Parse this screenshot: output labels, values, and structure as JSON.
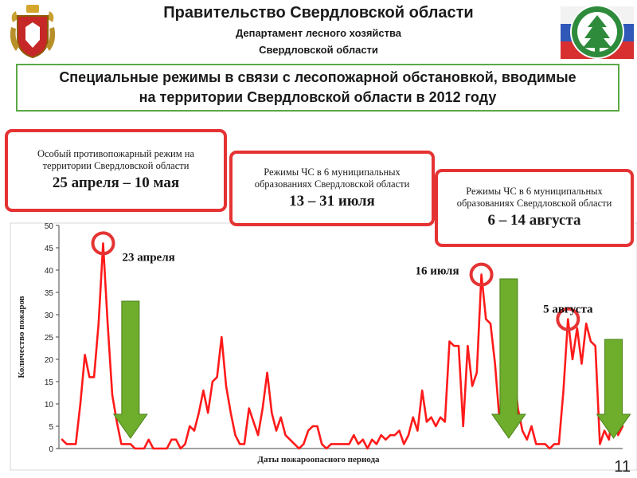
{
  "header": {
    "title": "Правительство Свердловской области",
    "subtitle_line1": "Департамент лесного хозяйства",
    "subtitle_line2": "Свердловской области"
  },
  "banner": {
    "line1": "Специальные режимы в связи с лесопожарной обстановкой, вводимые",
    "line2": "на территории Свердловской области в 2012 году"
  },
  "callouts": [
    {
      "text": "Особый противопожарный режим на территории Свердловской области",
      "dates": "25 апреля – 10 мая"
    },
    {
      "text": "Режимы ЧС в 6 муниципальных образованиях Свердловской области",
      "dates": "13 – 31 июля"
    },
    {
      "text": "Режимы ЧС в 6 муниципальных образованиях Свердловской области",
      "dates": "6 – 14 августа"
    }
  ],
  "page_number": "11",
  "colors": {
    "series": "#ff1a1a",
    "circle": "#e53333",
    "arrow": "#6fae2c",
    "banner_border": "#5aa845"
  },
  "icons": [
    "coat-of-arms-icon",
    "forestry-logo-icon",
    "arrow-down-icon"
  ],
  "chart_data": {
    "type": "line",
    "title": "",
    "xlabel": "Даты пожароопасного периода",
    "ylabel": "Количество пожаров",
    "ylim": [
      0,
      50
    ],
    "yticks": [
      0,
      5,
      10,
      15,
      20,
      25,
      30,
      35,
      40,
      45,
      50
    ],
    "grid": false,
    "legend": "none",
    "series": [
      {
        "values": [
          2,
          1,
          1,
          1,
          10,
          21,
          16,
          16,
          28,
          46,
          28,
          12,
          6,
          1,
          1,
          1,
          0,
          0,
          0,
          2,
          0,
          0,
          0,
          0,
          2,
          2,
          0,
          1,
          5,
          4,
          8,
          13,
          8,
          15,
          16,
          25,
          14,
          8,
          3,
          1,
          1,
          9,
          6,
          3,
          9,
          17,
          8,
          4,
          7,
          3,
          2,
          1,
          0,
          1,
          4,
          5,
          5,
          1,
          0,
          1,
          1,
          1,
          1,
          1,
          3,
          1,
          2,
          0,
          2,
          1,
          3,
          2,
          3,
          3,
          4,
          1,
          3,
          7,
          4,
          13,
          6,
          7,
          5,
          7,
          6,
          24,
          23,
          23,
          5,
          23,
          14,
          17,
          39,
          29,
          28,
          19,
          6,
          8,
          11,
          19,
          9,
          4,
          2,
          5,
          1,
          1,
          1,
          0,
          1,
          1,
          13,
          29,
          20,
          27,
          19,
          28,
          24,
          23,
          1,
          4,
          2,
          10,
          3,
          5
        ]
      }
    ],
    "annotations": [
      {
        "label": "23 апреля",
        "index": 9,
        "value": 46
      },
      {
        "label": "16 июля",
        "index": 92,
        "value": 39
      },
      {
        "label": "5 августа",
        "index": 111,
        "value": 29
      }
    ],
    "arrows": [
      {
        "index": 15
      },
      {
        "index": 98
      },
      {
        "index": 121
      }
    ]
  }
}
